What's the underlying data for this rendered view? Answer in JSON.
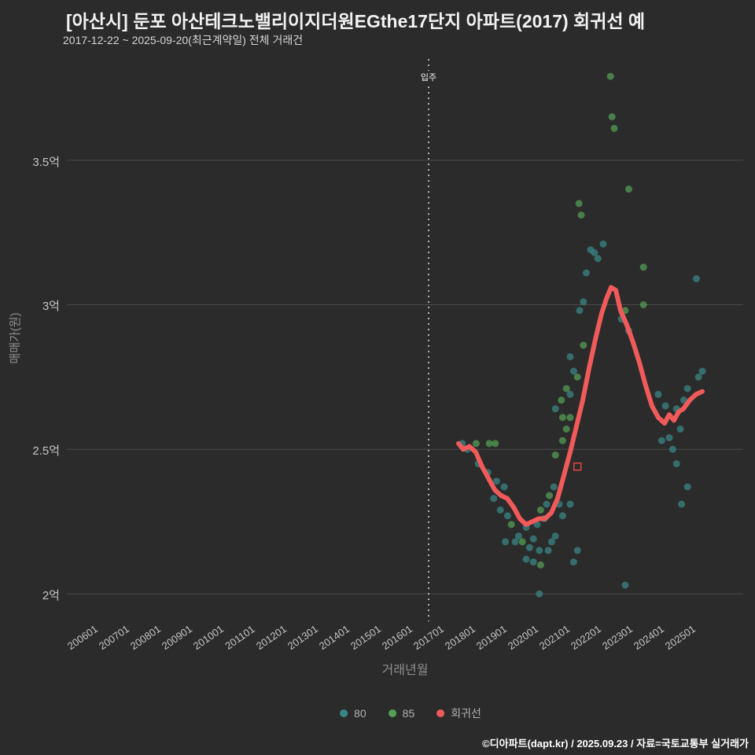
{
  "page": {
    "title": "[아산시] 둔포 아산테크노밸리이지더원EGthe17단지 아파트(2017) 회귀선 예",
    "subtitle": "2017-12-22 ~ 2025-09-20(최근계약일) 전체 거래건",
    "footer": "©디아파트(dapt.kr) / 2025.09.23 / 자료=국토교통부 실거래가"
  },
  "colors": {
    "background": "#2b2b2b",
    "grid": "#4a4a4a",
    "series_80": "#3a8686",
    "series_85": "#55a055",
    "regression": "#f05a5a",
    "annotation": "#e0e0e0",
    "highlight": "#e04545"
  },
  "chart_data": {
    "type": "scatter",
    "title": "[아산시] 둔포 아산테크노밸리이지더원EGthe17단지 아파트(2017) 회귀선 예",
    "subtitle": "2017-12-22 ~ 2025-09-20(최근계약일) 전체 거래건",
    "xlabel": "거래년월",
    "ylabel": "매매가(원)",
    "xlim": [
      2005.5,
      2027.0
    ],
    "ylim": [
      1.905,
      3.85
    ],
    "grid": "horizontal",
    "legend_position": "bottom",
    "x_ticks": [
      {
        "label": "200601",
        "value": 2006
      },
      {
        "label": "200701",
        "value": 2007
      },
      {
        "label": "200801",
        "value": 2008
      },
      {
        "label": "200901",
        "value": 2009
      },
      {
        "label": "201001",
        "value": 2010
      },
      {
        "label": "201101",
        "value": 2011
      },
      {
        "label": "201201",
        "value": 2012
      },
      {
        "label": "201301",
        "value": 2013
      },
      {
        "label": "201401",
        "value": 2014
      },
      {
        "label": "201501",
        "value": 2015
      },
      {
        "label": "201601",
        "value": 2016
      },
      {
        "label": "201701",
        "value": 2017
      },
      {
        "label": "201801",
        "value": 2018
      },
      {
        "label": "201901",
        "value": 2019
      },
      {
        "label": "202001",
        "value": 2020
      },
      {
        "label": "202101",
        "value": 2021
      },
      {
        "label": "202201",
        "value": 2022
      },
      {
        "label": "202301",
        "value": 2023
      },
      {
        "label": "202401",
        "value": 2024
      },
      {
        "label": "202501",
        "value": 2025
      }
    ],
    "y_ticks": [
      {
        "label": "2억",
        "value": 2.0
      },
      {
        "label": "2.5억",
        "value": 2.5
      },
      {
        "label": "3억",
        "value": 3.0
      },
      {
        "label": "3.5억",
        "value": 3.5
      }
    ],
    "annotation_line": {
      "label": "입주",
      "x": 2017.0
    },
    "legend": {
      "items": [
        {
          "label": "80",
          "color": "#3a8686"
        },
        {
          "label": "85",
          "color": "#55a055"
        },
        {
          "label": "회귀선",
          "color": "#f05a5a"
        }
      ]
    },
    "series": [
      {
        "name": "80",
        "type": "scatter",
        "color": "#3a8686",
        "points": [
          [
            2018.07,
            2.52
          ],
          [
            2018.23,
            2.5
          ],
          [
            2018.58,
            2.45
          ],
          [
            2018.88,
            2.42
          ],
          [
            2019.16,
            2.39
          ],
          [
            2019.4,
            2.37
          ],
          [
            2019.07,
            2.33
          ],
          [
            2019.28,
            2.29
          ],
          [
            2019.51,
            2.27
          ],
          [
            2019.44,
            2.18
          ],
          [
            2019.75,
            2.18
          ],
          [
            2019.86,
            2.2
          ],
          [
            2020.1,
            2.23
          ],
          [
            2020.21,
            2.16
          ],
          [
            2020.33,
            2.19
          ],
          [
            2020.45,
            2.24
          ],
          [
            2020.68,
            2.26
          ],
          [
            2020.52,
            2.15
          ],
          [
            2020.1,
            2.12
          ],
          [
            2020.33,
            2.11
          ],
          [
            2020.8,
            2.15
          ],
          [
            2020.91,
            2.18
          ],
          [
            2021.03,
            2.2
          ],
          [
            2020.75,
            2.31
          ],
          [
            2020.98,
            2.37
          ],
          [
            2021.15,
            2.31
          ],
          [
            2021.26,
            2.27
          ],
          [
            2021.5,
            2.31
          ],
          [
            2020.52,
            2.0
          ],
          [
            2021.61,
            2.11
          ],
          [
            2021.73,
            2.15
          ],
          [
            2021.03,
            2.64
          ],
          [
            2021.5,
            2.82
          ],
          [
            2021.61,
            2.77
          ],
          [
            2021.5,
            2.69
          ],
          [
            2021.92,
            3.01
          ],
          [
            2021.8,
            2.98
          ],
          [
            2022.01,
            3.11
          ],
          [
            2022.15,
            3.19
          ],
          [
            2022.27,
            3.18
          ],
          [
            2022.38,
            3.16
          ],
          [
            2022.55,
            3.21
          ],
          [
            2023.13,
            2.95
          ],
          [
            2023.36,
            2.91
          ],
          [
            2023.25,
            2.03
          ],
          [
            2024.3,
            2.69
          ],
          [
            2024.53,
            2.65
          ],
          [
            2024.88,
            2.64
          ],
          [
            2025.11,
            2.67
          ],
          [
            2025.23,
            2.71
          ],
          [
            2025.58,
            2.75
          ],
          [
            2025.7,
            2.77
          ],
          [
            2025.0,
            2.57
          ],
          [
            2024.65,
            2.54
          ],
          [
            2024.41,
            2.53
          ],
          [
            2024.76,
            2.5
          ],
          [
            2024.88,
            2.45
          ],
          [
            2025.23,
            2.37
          ],
          [
            2025.04,
            2.31
          ],
          [
            2025.51,
            3.09
          ]
        ]
      },
      {
        "name": "85",
        "type": "scatter",
        "color": "#55a055",
        "points": [
          [
            2018.51,
            2.52
          ],
          [
            2018.93,
            2.52
          ],
          [
            2019.12,
            2.52
          ],
          [
            2019.63,
            2.24
          ],
          [
            2019.98,
            2.18
          ],
          [
            2020.56,
            2.29
          ],
          [
            2020.56,
            2.1
          ],
          [
            2020.84,
            2.34
          ],
          [
            2021.03,
            2.48
          ],
          [
            2021.26,
            2.53
          ],
          [
            2021.38,
            2.57
          ],
          [
            2021.5,
            2.61
          ],
          [
            2021.22,
            2.67
          ],
          [
            2021.26,
            2.61
          ],
          [
            2021.38,
            2.71
          ],
          [
            2021.73,
            2.75
          ],
          [
            2021.92,
            2.86
          ],
          [
            2021.78,
            3.35
          ],
          [
            2021.85,
            3.31
          ],
          [
            2022.78,
            3.79
          ],
          [
            2022.83,
            3.65
          ],
          [
            2022.9,
            3.61
          ],
          [
            2023.36,
            3.4
          ],
          [
            2023.83,
            3.13
          ],
          [
            2023.83,
            3.0
          ],
          [
            2023.25,
            2.98
          ]
        ]
      },
      {
        "name": "회귀선",
        "type": "line",
        "color": "#f05a5a",
        "width": 6,
        "points": [
          [
            2017.95,
            2.52
          ],
          [
            2018.1,
            2.5
          ],
          [
            2018.3,
            2.51
          ],
          [
            2018.5,
            2.49
          ],
          [
            2018.7,
            2.44
          ],
          [
            2018.9,
            2.4
          ],
          [
            2019.1,
            2.36
          ],
          [
            2019.3,
            2.34
          ],
          [
            2019.5,
            2.33
          ],
          [
            2019.7,
            2.3
          ],
          [
            2019.9,
            2.26
          ],
          [
            2020.1,
            2.24
          ],
          [
            2020.3,
            2.25
          ],
          [
            2020.5,
            2.26
          ],
          [
            2020.7,
            2.26
          ],
          [
            2020.9,
            2.28
          ],
          [
            2021.1,
            2.33
          ],
          [
            2021.3,
            2.41
          ],
          [
            2021.5,
            2.49
          ],
          [
            2021.7,
            2.58
          ],
          [
            2021.9,
            2.67
          ],
          [
            2022.1,
            2.78
          ],
          [
            2022.3,
            2.88
          ],
          [
            2022.5,
            2.97
          ],
          [
            2022.65,
            3.02
          ],
          [
            2022.8,
            3.06
          ],
          [
            2022.95,
            3.05
          ],
          [
            2023.1,
            2.98
          ],
          [
            2023.3,
            2.93
          ],
          [
            2023.5,
            2.87
          ],
          [
            2023.7,
            2.8
          ],
          [
            2023.9,
            2.72
          ],
          [
            2024.1,
            2.65
          ],
          [
            2024.3,
            2.61
          ],
          [
            2024.5,
            2.59
          ],
          [
            2024.65,
            2.62
          ],
          [
            2024.8,
            2.6
          ],
          [
            2024.95,
            2.63
          ],
          [
            2025.1,
            2.64
          ],
          [
            2025.3,
            2.67
          ],
          [
            2025.5,
            2.69
          ],
          [
            2025.7,
            2.7
          ]
        ]
      }
    ],
    "highlight_marker": {
      "shape": "square-outline",
      "color": "#e04545",
      "point": [
        2021.73,
        2.44
      ]
    }
  }
}
